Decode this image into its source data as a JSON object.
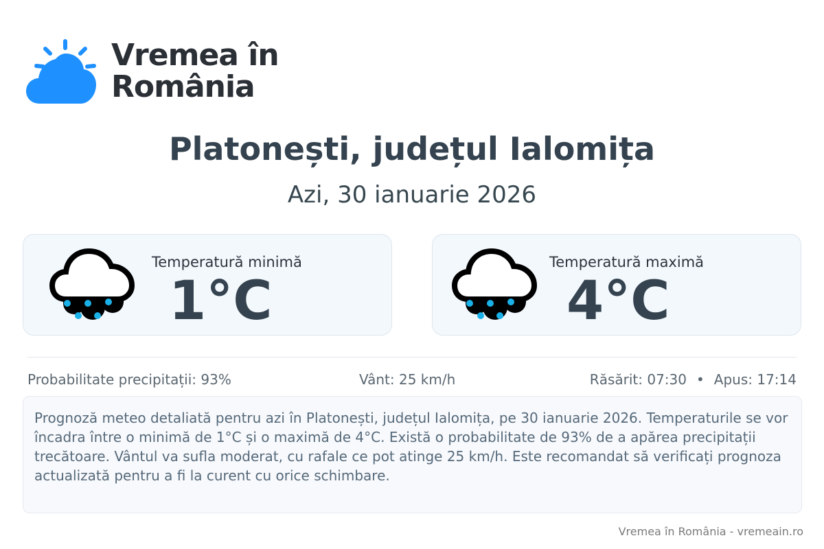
{
  "brand": {
    "name_line1": "Vremea în",
    "name_line2": "România",
    "color": "#1e90ff"
  },
  "header": {
    "title": "Platonești, județul Ialomița",
    "date": "Azi, 30 ianuarie 2026"
  },
  "cards": [
    {
      "label": "Temperatură minimă",
      "value": "1°C",
      "icon": "rain-cloud-icon"
    },
    {
      "label": "Temperatură maximă",
      "value": "4°C",
      "icon": "rain-cloud-icon"
    }
  ],
  "info": {
    "precip": "Probabilitate precipitații: 93%",
    "wind": "Vânt: 25 km/h",
    "sunrise": "Răsărit: 07:30",
    "separator": "•",
    "sunset": "Apus: 17:14"
  },
  "description": "Prognoză meteo detaliată pentru azi în Platonești, județul Ialomița, pe 30 ianuarie 2026. Temperaturile se vor încadra între o minimă de 1°C și o maximă de 4°C. Există o probabilitate de 93% de a apărea precipitații trecătoare. Vântul va sufla moderat, cu rafale ce pot atinge 25 km/h. Este recomandat să verificați prognoza actualizată pentru a fi la curent cu orice schimbare.",
  "footer": "Vremea în România - vremeain.ro"
}
